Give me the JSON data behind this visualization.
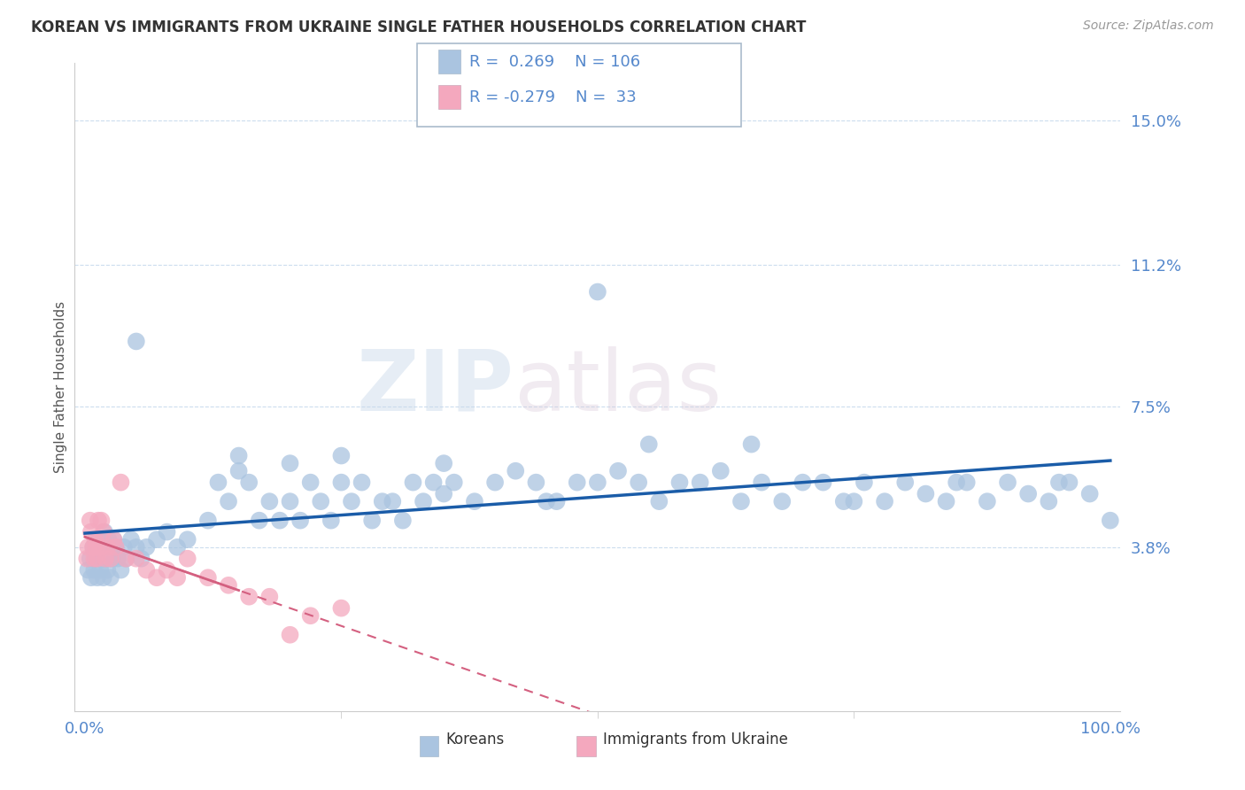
{
  "title": "KOREAN VS IMMIGRANTS FROM UKRAINE SINGLE FATHER HOUSEHOLDS CORRELATION CHART",
  "source": "Source: ZipAtlas.com",
  "ylabel": "Single Father Households",
  "watermark_zip": "ZIP",
  "watermark_atlas": "atlas",
  "xlim": [
    -1,
    101
  ],
  "ylim": [
    -0.5,
    16.5
  ],
  "ytick_vals": [
    3.8,
    7.5,
    11.2,
    15.0
  ],
  "ytick_labels": [
    "3.8%",
    "7.5%",
    "11.2%",
    "15.0%"
  ],
  "xtick_vals": [
    0,
    100
  ],
  "xtick_labels": [
    "0.0%",
    "100.0%"
  ],
  "korean_R": 0.269,
  "korean_N": 106,
  "ukraine_R": -0.279,
  "ukraine_N": 33,
  "korean_color": "#aac4e0",
  "ukraine_color": "#f4a8be",
  "trend_korean_color": "#1a5ca8",
  "trend_ukraine_color": "#d46080",
  "legend_label_korean": "Koreans",
  "legend_label_ukraine": "Immigrants from Ukraine",
  "title_fontsize": 12,
  "axis_label_color": "#5588cc",
  "tick_color": "#5588cc",
  "background_color": "#ffffff",
  "grid_color": "#ccddee",
  "spine_color": "#cccccc",
  "korean_x": [
    0.3,
    0.5,
    0.6,
    0.8,
    0.9,
    1.0,
    1.1,
    1.2,
    1.3,
    1.4,
    1.5,
    1.6,
    1.7,
    1.8,
    1.9,
    2.0,
    2.1,
    2.2,
    2.3,
    2.4,
    2.5,
    2.6,
    2.7,
    2.8,
    3.0,
    3.2,
    3.5,
    3.8,
    4.0,
    4.5,
    5.0,
    5.5,
    6.0,
    7.0,
    8.0,
    9.0,
    10.0,
    12.0,
    13.0,
    14.0,
    15.0,
    16.0,
    17.0,
    18.0,
    19.0,
    20.0,
    21.0,
    22.0,
    23.0,
    24.0,
    25.0,
    26.0,
    27.0,
    28.0,
    29.0,
    30.0,
    31.0,
    32.0,
    33.0,
    34.0,
    35.0,
    36.0,
    38.0,
    40.0,
    42.0,
    44.0,
    46.0,
    48.0,
    50.0,
    52.0,
    54.0,
    56.0,
    58.0,
    60.0,
    62.0,
    64.0,
    66.0,
    68.0,
    70.0,
    72.0,
    74.0,
    76.0,
    78.0,
    80.0,
    82.0,
    84.0,
    86.0,
    88.0,
    90.0,
    92.0,
    94.0,
    96.0,
    98.0,
    100.0,
    95.0,
    85.0,
    75.0,
    65.0,
    55.0,
    45.0,
    35.0,
    25.0,
    15.0,
    5.0,
    20.0,
    50.0
  ],
  "korean_y": [
    3.2,
    3.5,
    3.0,
    3.8,
    3.2,
    3.5,
    3.8,
    3.0,
    4.0,
    3.5,
    3.2,
    3.8,
    3.5,
    3.0,
    4.2,
    3.5,
    3.8,
    3.2,
    4.0,
    3.5,
    3.0,
    3.8,
    3.5,
    4.0,
    3.8,
    3.5,
    3.2,
    3.8,
    3.5,
    4.0,
    3.8,
    3.5,
    3.8,
    4.0,
    4.2,
    3.8,
    4.0,
    4.5,
    5.5,
    5.0,
    6.2,
    5.5,
    4.5,
    5.0,
    4.5,
    5.0,
    4.5,
    5.5,
    5.0,
    4.5,
    5.5,
    5.0,
    5.5,
    4.5,
    5.0,
    5.0,
    4.5,
    5.5,
    5.0,
    5.5,
    5.2,
    5.5,
    5.0,
    5.5,
    5.8,
    5.5,
    5.0,
    5.5,
    5.5,
    5.8,
    5.5,
    5.0,
    5.5,
    5.5,
    5.8,
    5.0,
    5.5,
    5.0,
    5.5,
    5.5,
    5.0,
    5.5,
    5.0,
    5.5,
    5.2,
    5.0,
    5.5,
    5.0,
    5.5,
    5.2,
    5.0,
    5.5,
    5.2,
    4.5,
    5.5,
    5.5,
    5.0,
    6.5,
    6.5,
    5.0,
    6.0,
    6.2,
    5.8,
    9.2,
    6.0,
    10.5
  ],
  "ukraine_x": [
    0.2,
    0.3,
    0.5,
    0.6,
    0.8,
    0.9,
    1.0,
    1.1,
    1.2,
    1.3,
    1.5,
    1.6,
    1.8,
    2.0,
    2.2,
    2.5,
    2.8,
    3.0,
    3.5,
    4.0,
    5.0,
    6.0,
    7.0,
    8.0,
    9.0,
    10.0,
    12.0,
    14.0,
    16.0,
    18.0,
    20.0,
    22.0,
    25.0
  ],
  "ukraine_y": [
    3.5,
    3.8,
    4.5,
    4.2,
    3.8,
    3.5,
    4.0,
    3.8,
    3.5,
    4.5,
    3.8,
    4.5,
    4.2,
    3.5,
    3.8,
    3.5,
    4.0,
    3.8,
    5.5,
    3.5,
    3.5,
    3.2,
    3.0,
    3.2,
    3.0,
    3.5,
    3.0,
    2.8,
    2.5,
    2.5,
    1.5,
    2.0,
    2.2
  ],
  "ukraine_trend_x_end": 50
}
